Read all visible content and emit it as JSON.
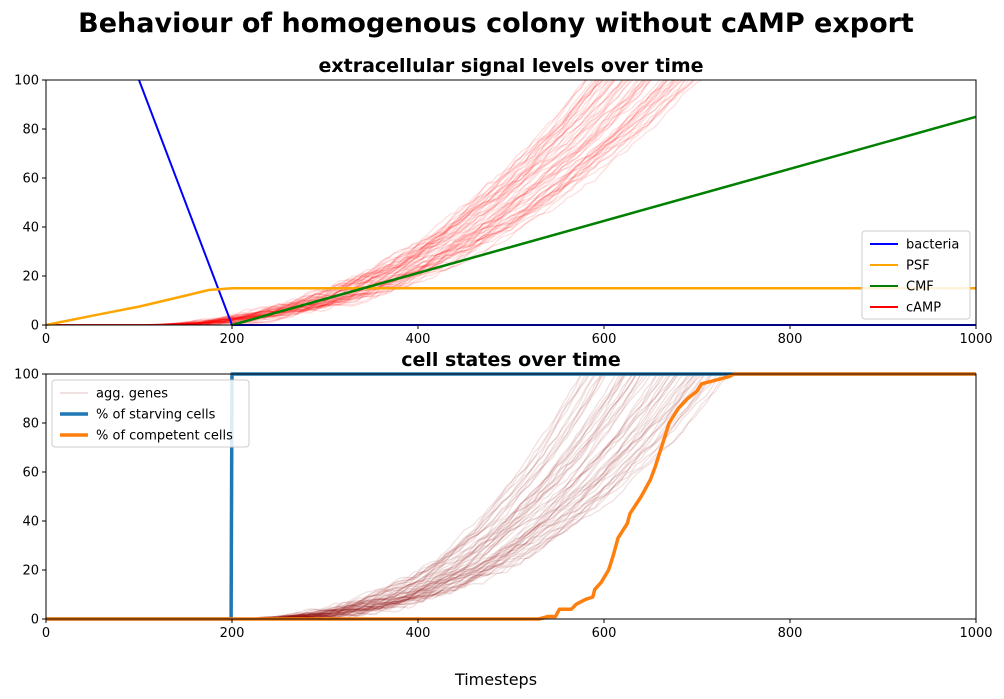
{
  "figure": {
    "suptitle": "Behaviour of homogenous colony without cAMP export",
    "xlabel": "Timesteps"
  },
  "chart_data": [
    {
      "type": "line",
      "title": "extracellular signal levels over time",
      "xlim": [
        0,
        1000
      ],
      "ylim": [
        0,
        100
      ],
      "xticks": [
        "0",
        "200",
        "400",
        "600",
        "800",
        "1000"
      ],
      "yticks": [
        "0",
        "20",
        "40",
        "60",
        "80",
        "100"
      ],
      "legend_position": "lower-right",
      "legend": [
        {
          "label": "bacteria",
          "color": "#0000ff"
        },
        {
          "label": "PSF",
          "color": "#ffa500"
        },
        {
          "label": "CMF",
          "color": "#008000"
        },
        {
          "label": "cAMP",
          "color": "#ff0000"
        }
      ],
      "series": [
        {
          "name": "bacteria",
          "color": "#0000ff",
          "points": [
            [
              100,
              100
            ],
            [
              200,
              0
            ],
            [
              1000,
              0
            ]
          ]
        },
        {
          "name": "PSF",
          "color": "#ffa500",
          "points": [
            [
              0,
              0
            ],
            [
              50,
              3.8
            ],
            [
              100,
              7.5
            ],
            [
              150,
              12.0
            ],
            [
              175,
              14.3
            ],
            [
              200,
              15
            ],
            [
              1000,
              15
            ]
          ]
        },
        {
          "name": "CMF",
          "color": "#008000",
          "points": [
            [
              200,
              0
            ],
            [
              1000,
              85
            ]
          ]
        }
      ],
      "cAMP_traces": {
        "color": "#ff0000",
        "count": 60,
        "description_range": "individual cell cAMP traces rising from 0 near t=100 to 100 between t=580 and t=700",
        "start_x": 100,
        "reach100_min_x": 580,
        "reach100_max_x": 700,
        "exponent": 2.3
      }
    },
    {
      "type": "line",
      "title": "cell states over time",
      "xlim": [
        0,
        1000
      ],
      "ylim": [
        0,
        100
      ],
      "xticks": [
        "0",
        "200",
        "400",
        "600",
        "800",
        "1000"
      ],
      "yticks": [
        "0",
        "20",
        "40",
        "60",
        "80",
        "100"
      ],
      "legend_position": "upper-left",
      "legend": [
        {
          "label": "agg. genes",
          "color": "#8b0000",
          "style": "faint"
        },
        {
          "label": "% of starving cells",
          "color": "#1f77b4",
          "style": "thick"
        },
        {
          "label": "% of competent cells",
          "color": "#ff7f0e",
          "style": "thick"
        }
      ],
      "series": [
        {
          "name": "% of starving cells",
          "color": "#1f77b4",
          "points": [
            [
              0,
              0
            ],
            [
              199,
              0
            ],
            [
              200,
              100
            ],
            [
              1000,
              100
            ]
          ]
        },
        {
          "name": "% of competent cells",
          "color": "#ff7f0e",
          "points": [
            [
              0,
              0
            ],
            [
              530,
              0
            ],
            [
              540,
              1
            ],
            [
              548,
              1
            ],
            [
              552,
              4
            ],
            [
              565,
              4
            ],
            [
              570,
              6
            ],
            [
              580,
              8
            ],
            [
              588,
              9
            ],
            [
              590,
              12
            ],
            [
              597,
              15
            ],
            [
              605,
              20
            ],
            [
              610,
              26
            ],
            [
              615,
              33
            ],
            [
              620,
              36
            ],
            [
              625,
              39
            ],
            [
              628,
              43
            ],
            [
              640,
              50
            ],
            [
              650,
              57
            ],
            [
              655,
              62
            ],
            [
              660,
              68
            ],
            [
              665,
              74
            ],
            [
              670,
              80
            ],
            [
              680,
              86
            ],
            [
              690,
              90
            ],
            [
              700,
              93
            ],
            [
              705,
              96
            ],
            [
              715,
              97
            ],
            [
              725,
              98
            ],
            [
              735,
              99
            ],
            [
              740,
              100
            ],
            [
              1000,
              100
            ]
          ]
        }
      ],
      "agg_gene_traces": {
        "color": "#8b0000",
        "count": 60,
        "start_x": 200,
        "reach100_min_x": 580,
        "reach100_max_x": 730,
        "exponent": 2.6
      }
    }
  ]
}
